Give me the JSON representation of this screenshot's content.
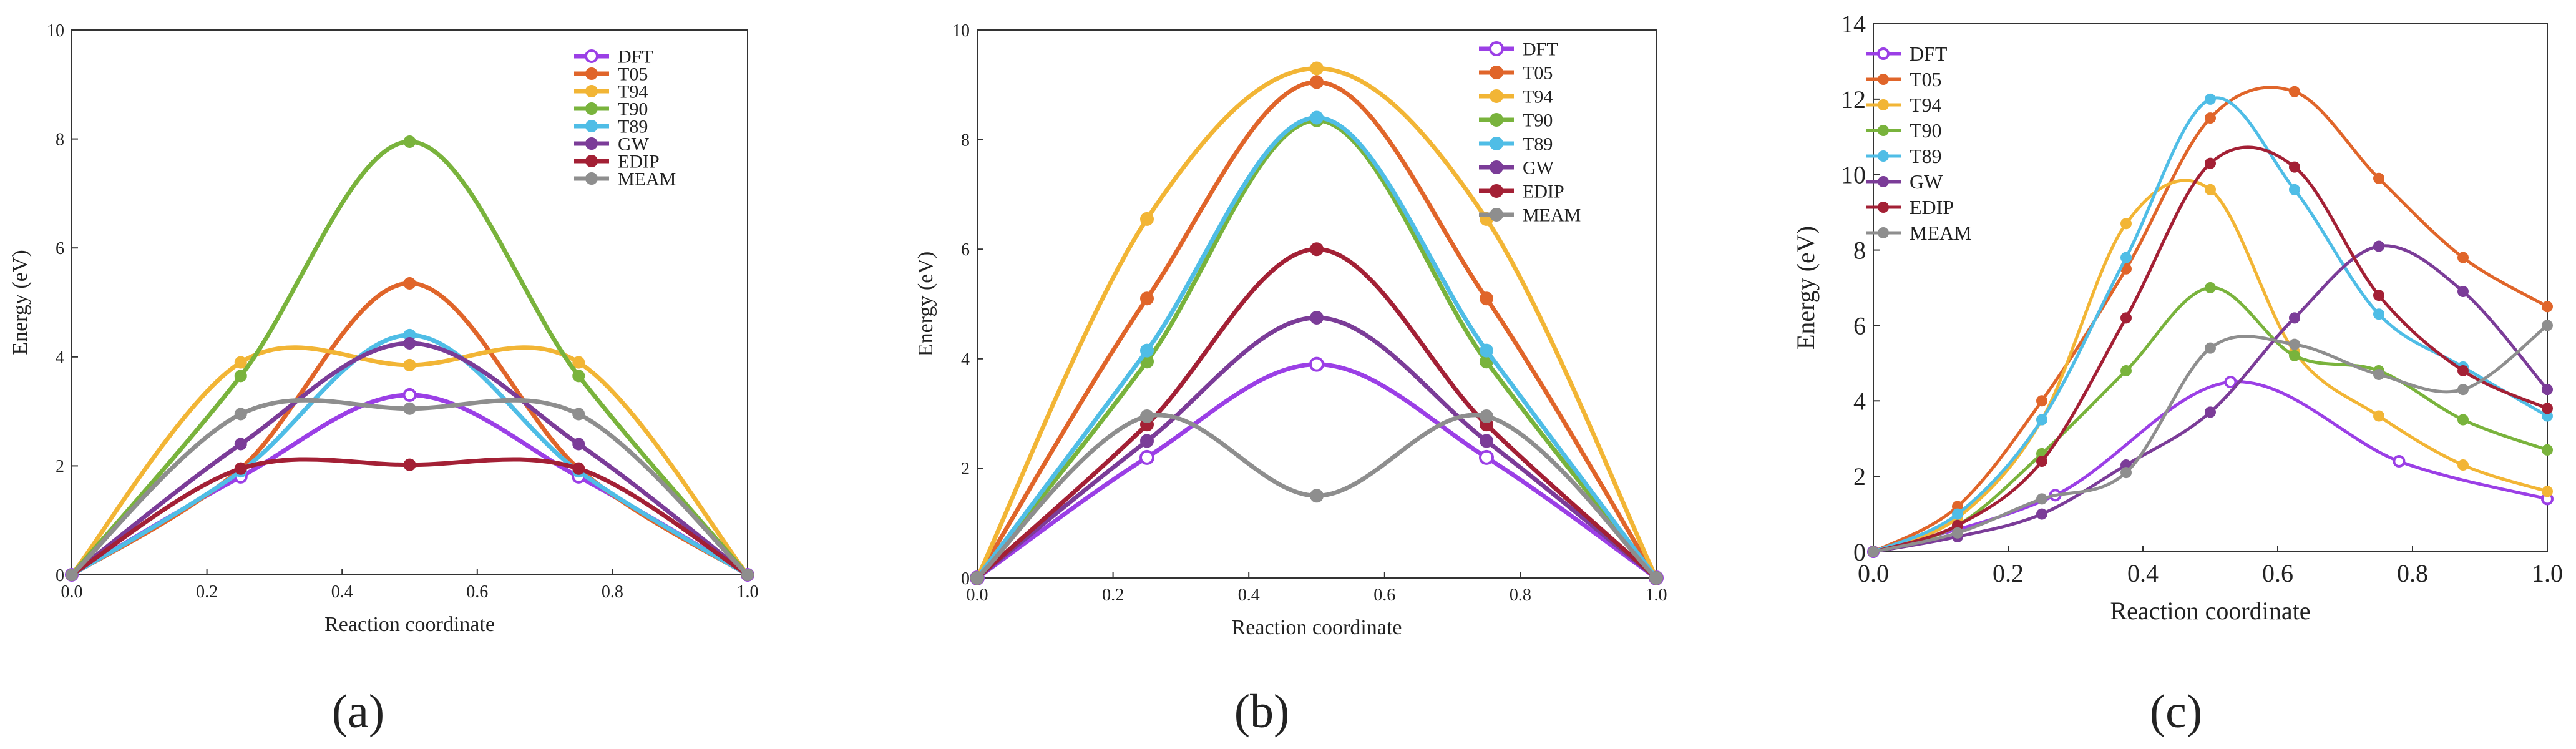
{
  "figure": {
    "panel_labels": [
      "(a)",
      "(b)",
      "(c)"
    ]
  },
  "colors": {
    "DFT": "#9b3fe6",
    "T05": "#e0652a",
    "T94": "#f2b535",
    "T90": "#79b33c",
    "T89": "#4fbde6",
    "GW": "#7b3c98",
    "EDIP": "#a32035",
    "MEAM": "#8e8e8e"
  },
  "chart_data": [
    {
      "type": "line",
      "panel": "(a)",
      "title": "",
      "xlabel": "Reaction coordinate",
      "ylabel": "Energy (eV)",
      "xlim": [
        0,
        1.0
      ],
      "ylim": [
        0,
        10
      ],
      "xticks": [
        "0.0",
        "0.2",
        "0.4",
        "0.6",
        "0.8",
        "1.0"
      ],
      "yticks": [
        "0",
        "2",
        "4",
        "6",
        "8",
        "10"
      ],
      "legend": "top-right",
      "series": [
        {
          "name": "DFT",
          "hollow": true,
          "x": [
            0,
            0.25,
            0.5,
            0.75,
            1.0
          ],
          "y": [
            0,
            1.8,
            3.3,
            1.8,
            0
          ]
        },
        {
          "name": "T05",
          "x": [
            0,
            0.25,
            0.5,
            0.75,
            1.0
          ],
          "y": [
            0,
            1.95,
            5.35,
            1.95,
            0
          ]
        },
        {
          "name": "T94",
          "x": [
            0,
            0.25,
            0.5,
            0.75,
            1.0
          ],
          "y": [
            0,
            3.9,
            3.85,
            3.9,
            0
          ]
        },
        {
          "name": "T90",
          "x": [
            0,
            0.25,
            0.5,
            0.75,
            1.0
          ],
          "y": [
            0,
            3.65,
            7.95,
            3.65,
            0
          ]
        },
        {
          "name": "T89",
          "x": [
            0,
            0.25,
            0.5,
            0.75,
            1.0
          ],
          "y": [
            0,
            1.9,
            4.4,
            1.9,
            0
          ]
        },
        {
          "name": "GW",
          "x": [
            0,
            0.25,
            0.5,
            0.75,
            1.0
          ],
          "y": [
            0,
            2.4,
            4.25,
            2.4,
            0
          ]
        },
        {
          "name": "EDIP",
          "x": [
            0,
            0.25,
            0.5,
            0.75,
            1.0
          ],
          "y": [
            0,
            1.95,
            2.02,
            1.95,
            0
          ]
        },
        {
          "name": "MEAM",
          "x": [
            0,
            0.25,
            0.5,
            0.75,
            1.0
          ],
          "y": [
            0,
            2.95,
            3.05,
            2.95,
            0
          ]
        }
      ]
    },
    {
      "type": "line",
      "panel": "(b)",
      "title": "",
      "xlabel": "Reaction coordinate",
      "ylabel": "Energy (eV)",
      "xlim": [
        0,
        1.0
      ],
      "ylim": [
        0,
        10
      ],
      "xticks": [
        "0.0",
        "0.2",
        "0.4",
        "0.6",
        "0.8",
        "1.0"
      ],
      "yticks": [
        "0",
        "2",
        "4",
        "6",
        "8",
        "10"
      ],
      "legend": "top-right",
      "series": [
        {
          "name": "DFT",
          "hollow": true,
          "x": [
            0,
            0.25,
            0.5,
            0.75,
            1.0
          ],
          "y": [
            0,
            2.2,
            3.9,
            2.2,
            0
          ]
        },
        {
          "name": "T05",
          "x": [
            0,
            0.25,
            0.5,
            0.75,
            1.0
          ],
          "y": [
            0,
            5.1,
            9.05,
            5.1,
            0
          ]
        },
        {
          "name": "T94",
          "x": [
            0,
            0.25,
            0.5,
            0.75,
            1.0
          ],
          "y": [
            0,
            6.55,
            9.3,
            6.55,
            0
          ]
        },
        {
          "name": "T90",
          "x": [
            0,
            0.25,
            0.5,
            0.75,
            1.0
          ],
          "y": [
            0,
            3.95,
            8.35,
            3.95,
            0
          ]
        },
        {
          "name": "T89",
          "x": [
            0,
            0.25,
            0.5,
            0.75,
            1.0
          ],
          "y": [
            0,
            4.15,
            8.4,
            4.15,
            0
          ]
        },
        {
          "name": "GW",
          "x": [
            0,
            0.25,
            0.5,
            0.75,
            1.0
          ],
          "y": [
            0,
            2.5,
            4.75,
            2.5,
            0
          ]
        },
        {
          "name": "EDIP",
          "x": [
            0,
            0.25,
            0.5,
            0.75,
            1.0
          ],
          "y": [
            0,
            2.8,
            6.0,
            2.8,
            0
          ]
        },
        {
          "name": "MEAM",
          "x": [
            0,
            0.25,
            0.5,
            0.75,
            1.0
          ],
          "y": [
            0,
            2.95,
            1.5,
            2.95,
            0
          ]
        }
      ]
    },
    {
      "type": "line",
      "panel": "(c)",
      "title": "",
      "xlabel": "Reaction coordinate",
      "ylabel": "Energy (eV)",
      "xlim": [
        0,
        1.0
      ],
      "ylim": [
        0,
        14
      ],
      "xticks": [
        "0.0",
        "0.2",
        "0.4",
        "0.6",
        "0.8",
        "1.0"
      ],
      "yticks": [
        "0",
        "2",
        "4",
        "6",
        "8",
        "10",
        "12",
        "14"
      ],
      "legend": "top-left",
      "series": [
        {
          "name": "DFT",
          "hollow": true,
          "x": [
            0,
            0.27,
            0.53,
            0.78,
            1.0
          ],
          "y": [
            0,
            1.5,
            4.5,
            2.4,
            1.4
          ]
        },
        {
          "name": "T05",
          "x": [
            0,
            0.125,
            0.25,
            0.375,
            0.5,
            0.625,
            0.75,
            0.875,
            1.0
          ],
          "y": [
            0,
            1.2,
            4.0,
            7.5,
            11.5,
            12.2,
            9.9,
            7.8,
            6.5
          ]
        },
        {
          "name": "T94",
          "x": [
            0,
            0.125,
            0.25,
            0.375,
            0.5,
            0.625,
            0.75,
            0.875,
            1.0
          ],
          "y": [
            0,
            0.9,
            3.5,
            8.7,
            9.6,
            5.3,
            3.6,
            2.3,
            1.6
          ]
        },
        {
          "name": "T90",
          "x": [
            0,
            0.125,
            0.25,
            0.375,
            0.5,
            0.625,
            0.75,
            0.875,
            1.0
          ],
          "y": [
            0,
            0.7,
            2.6,
            4.8,
            7.0,
            5.2,
            4.8,
            3.5,
            2.7
          ]
        },
        {
          "name": "T89",
          "x": [
            0,
            0.125,
            0.25,
            0.375,
            0.5,
            0.625,
            0.75,
            0.875,
            1.0
          ],
          "y": [
            0,
            1.0,
            3.5,
            7.8,
            12.0,
            9.6,
            6.3,
            4.9,
            3.6
          ]
        },
        {
          "name": "GW",
          "x": [
            0,
            0.125,
            0.25,
            0.375,
            0.5,
            0.625,
            0.75,
            0.875,
            1.0
          ],
          "y": [
            0,
            0.4,
            1.0,
            2.3,
            3.7,
            6.2,
            8.1,
            6.9,
            4.3
          ]
        },
        {
          "name": "EDIP",
          "x": [
            0,
            0.125,
            0.25,
            0.375,
            0.5,
            0.625,
            0.75,
            0.875,
            1.0
          ],
          "y": [
            0,
            0.7,
            2.4,
            6.2,
            10.3,
            10.2,
            6.8,
            4.8,
            3.8
          ]
        },
        {
          "name": "MEAM",
          "x": [
            0,
            0.125,
            0.25,
            0.375,
            0.5,
            0.625,
            0.75,
            0.875,
            1.0
          ],
          "y": [
            0,
            0.5,
            1.4,
            2.1,
            5.4,
            5.5,
            4.7,
            4.3,
            6.0
          ]
        }
      ]
    }
  ]
}
